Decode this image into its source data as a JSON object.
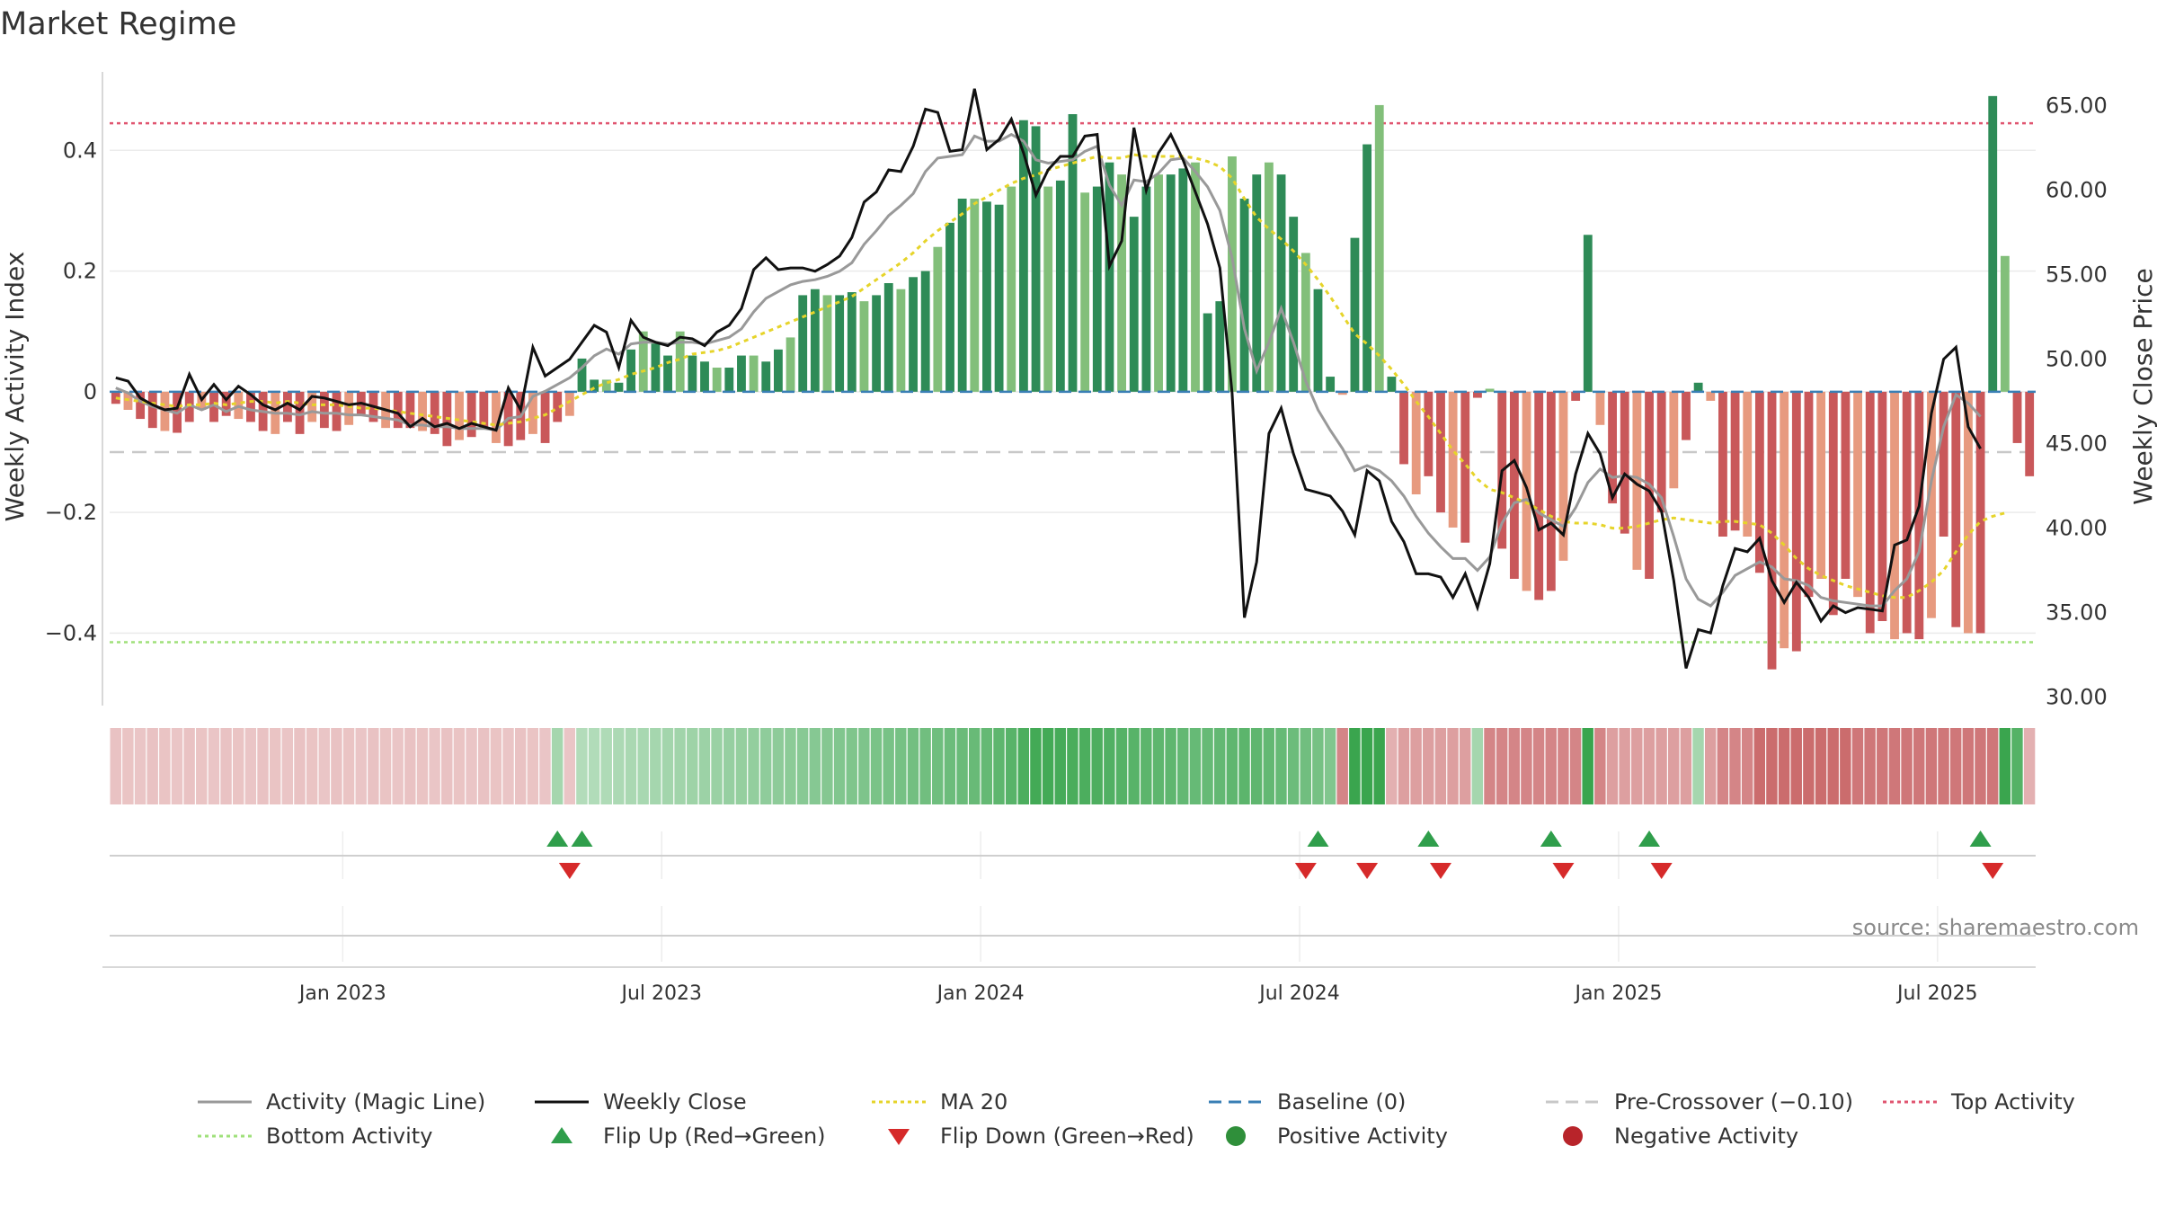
{
  "title": "Market Regime",
  "source": "source: sharemaestro.com",
  "chart_data": {
    "type": "bar",
    "title": "Market Regime",
    "ylabel_left": "Weekly Activity Index",
    "ylabel_right": "Weekly Close Price",
    "ylim_left": [
      -0.52,
      0.53
    ],
    "ylim_right": [
      29.5,
      67.0
    ],
    "yticks_left": [
      {
        "value": 0.4,
        "label": "0.4"
      },
      {
        "value": 0.2,
        "label": "0.2"
      },
      {
        "value": 0,
        "label": "0"
      },
      {
        "value": -0.2,
        "label": "−0.2"
      },
      {
        "value": -0.4,
        "label": "−0.4"
      }
    ],
    "yticks_right": [
      "65.00",
      "60.00",
      "55.00",
      "50.00",
      "45.00",
      "40.00",
      "35.00",
      "30.00"
    ],
    "xticks": [
      {
        "week": 19,
        "label": "Jan 2023"
      },
      {
        "week": 45,
        "label": "Jul 2023"
      },
      {
        "week": 71,
        "label": "Jan 2024"
      },
      {
        "week": 97,
        "label": "Jul 2024"
      },
      {
        "week": 123,
        "label": "Jan 2025"
      },
      {
        "week": 149,
        "label": "Jul 2025"
      }
    ],
    "reference_lines": {
      "top_activity": 0.445,
      "bottom_activity": -0.415,
      "baseline": 0,
      "pre_crossover": -0.1
    },
    "activity_weekly": [
      -0.02,
      -0.03,
      -0.045,
      -0.06,
      -0.065,
      -0.068,
      -0.05,
      -0.03,
      -0.05,
      -0.04,
      -0.045,
      -0.05,
      -0.065,
      -0.07,
      -0.05,
      -0.07,
      -0.05,
      -0.06,
      -0.065,
      -0.055,
      -0.04,
      -0.05,
      -0.06,
      -0.06,
      -0.06,
      -0.065,
      -0.07,
      -0.09,
      -0.08,
      -0.075,
      -0.06,
      -0.085,
      -0.09,
      -0.08,
      -0.07,
      -0.085,
      -0.05,
      -0.04,
      0.055,
      0.02,
      0.02,
      0.015,
      0.07,
      0.1,
      0.08,
      0.06,
      0.1,
      0.06,
      0.05,
      0.04,
      0.04,
      0.06,
      0.06,
      0.05,
      0.07,
      0.09,
      0.16,
      0.17,
      0.16,
      0.16,
      0.165,
      0.15,
      0.16,
      0.18,
      0.17,
      0.19,
      0.2,
      0.24,
      0.28,
      0.32,
      0.32,
      0.315,
      0.31,
      0.34,
      0.45,
      0.44,
      0.34,
      0.35,
      0.46,
      0.33,
      0.34,
      0.38,
      0.36,
      0.29,
      0.34,
      0.36,
      0.36,
      0.37,
      0.38,
      0.13,
      0.15,
      0.39,
      0.32,
      0.36,
      0.38,
      0.36,
      0.29,
      0.23,
      0.17,
      0.025,
      -0.005,
      0.255,
      0.41,
      0.475,
      0.025,
      -0.12,
      -0.17,
      -0.14,
      -0.2,
      -0.225,
      -0.25,
      -0.01,
      0.005,
      -0.26,
      -0.31,
      -0.33,
      -0.345,
      -0.33,
      -0.28,
      -0.015,
      0.26,
      -0.055,
      -0.185,
      -0.235,
      -0.295,
      -0.31,
      -0.2,
      -0.16,
      -0.08,
      0.015,
      -0.015,
      -0.24,
      -0.23,
      -0.24,
      -0.3,
      -0.46,
      -0.425,
      -0.43,
      -0.34,
      -0.31,
      -0.37,
      -0.31,
      -0.34,
      -0.4,
      -0.38,
      -0.41,
      -0.4,
      -0.41,
      -0.375,
      -0.24,
      -0.39,
      -0.4,
      -0.4,
      0.49,
      0.225,
      -0.085,
      -0.14
    ],
    "close_weekly": [
      48.9,
      48.7,
      47.7,
      47.3,
      47.0,
      47.1,
      49.1,
      47.6,
      48.5,
      47.6,
      48.4,
      47.9,
      47.3,
      47.0,
      47.4,
      47.0,
      47.8,
      47.7,
      47.5,
      47.3,
      47.4,
      47.2,
      47.0,
      46.8,
      46.0,
      46.5,
      46.0,
      46.2,
      45.9,
      46.2,
      46.0,
      45.8,
      48.3,
      47.0,
      50.7,
      49.0,
      49.5,
      50.0,
      51.0,
      52.0,
      51.6,
      49.5,
      52.3,
      51.3,
      51.0,
      50.8,
      51.3,
      51.2,
      50.8,
      51.6,
      52.0,
      53.0,
      55.3,
      56.0,
      55.3,
      55.4,
      55.4,
      55.2,
      55.6,
      56.1,
      57.2,
      59.3,
      59.9,
      61.2,
      61.1,
      62.6,
      64.8,
      64.6,
      62.3,
      62.4,
      66.0,
      62.4,
      63.0,
      64.2,
      62.2,
      59.7,
      61.2,
      62.0,
      62.0,
      63.2,
      63.3,
      55.5,
      57.0,
      63.7,
      60.0,
      62.2,
      63.3,
      61.8,
      59.9,
      58.0,
      55.4,
      48.0,
      34.7,
      38.0,
      45.6,
      47.1,
      44.4,
      42.3,
      42.1,
      41.9,
      41.0,
      39.6,
      43.4,
      42.8,
      40.4,
      39.2,
      37.3,
      37.3,
      37.1,
      35.9,
      37.3,
      35.3,
      37.9,
      43.4,
      44.0,
      42.4,
      39.9,
      40.3,
      39.6,
      43.2,
      45.6,
      44.4,
      41.8,
      43.2,
      42.6,
      42.2,
      41.0,
      36.9,
      31.7,
      34.0,
      33.8,
      36.6,
      38.8,
      38.6,
      39.4,
      36.9,
      35.6,
      36.8,
      35.9,
      34.5,
      35.4,
      35.0,
      35.3,
      35.2,
      35.1,
      39.0,
      39.3,
      41.3,
      46.8,
      50.0,
      50.7,
      46.0,
      44.7
    ],
    "magic_line_weekly": [
      48.3,
      48.0,
      47.5,
      47.2,
      47.0,
      46.8,
      47.3,
      47.0,
      47.3,
      46.9,
      47.2,
      47.0,
      46.9,
      46.8,
      46.8,
      46.7,
      46.9,
      46.8,
      46.8,
      46.7,
      46.7,
      46.6,
      46.5,
      46.4,
      46.1,
      46.1,
      46.0,
      46.0,
      45.9,
      45.9,
      45.9,
      45.8,
      46.5,
      46.6,
      47.8,
      48.1,
      48.5,
      48.9,
      49.5,
      50.2,
      50.6,
      50.3,
      50.9,
      51.0,
      51.0,
      50.9,
      51.0,
      51.0,
      50.9,
      51.1,
      51.3,
      51.8,
      52.8,
      53.6,
      54.0,
      54.4,
      54.6,
      54.7,
      54.9,
      55.2,
      55.7,
      56.8,
      57.6,
      58.5,
      59.1,
      59.8,
      61.1,
      61.9,
      62.0,
      62.1,
      63.2,
      62.9,
      62.9,
      63.3,
      62.9,
      61.8,
      61.6,
      61.7,
      61.8,
      62.3,
      62.6,
      60.3,
      59.1,
      60.6,
      60.5,
      61.0,
      61.8,
      61.9,
      61.1,
      60.2,
      58.8,
      56.0,
      51.8,
      49.3,
      51.0,
      53.0,
      51.0,
      48.7,
      47.0,
      45.8,
      44.7,
      43.4,
      43.7,
      43.4,
      42.8,
      41.9,
      40.7,
      39.7,
      38.9,
      38.2,
      38.2,
      37.5,
      38.3,
      40.3,
      41.5,
      41.7,
      40.9,
      40.5,
      40.1,
      41.2,
      42.7,
      43.5,
      43.0,
      43.1,
      43.0,
      42.6,
      41.8,
      39.5,
      37.0,
      35.8,
      35.4,
      36.2,
      37.2,
      37.6,
      38.0,
      37.7,
      37.0,
      36.9,
      36.6,
      35.9,
      35.7,
      35.6,
      35.5,
      35.4,
      35.4,
      36.3,
      37.0,
      38.6,
      42.8,
      46.0,
      47.9,
      47.4,
      46.6
    ],
    "ma20_weekly": [
      47.7,
      47.6,
      47.5,
      47.4,
      47.3,
      47.2,
      47.3,
      47.3,
      47.4,
      47.3,
      47.4,
      47.5,
      47.5,
      47.4,
      47.5,
      47.4,
      47.3,
      47.3,
      47.3,
      47.2,
      47.1,
      47.1,
      47.0,
      46.9,
      46.8,
      46.7,
      46.6,
      46.5,
      46.4,
      46.3,
      46.2,
      46.1,
      46.2,
      46.3,
      46.5,
      46.7,
      47.1,
      47.5,
      47.9,
      48.3,
      48.6,
      48.8,
      49.1,
      49.3,
      49.5,
      49.8,
      50.0,
      50.3,
      50.4,
      50.5,
      50.7,
      51.0,
      51.3,
      51.6,
      51.9,
      52.2,
      52.5,
      52.8,
      53.1,
      53.4,
      53.7,
      54.2,
      54.7,
      55.2,
      55.7,
      56.3,
      57.0,
      57.6,
      58.1,
      58.6,
      59.2,
      59.6,
      60.0,
      60.4,
      60.7,
      60.9,
      61.2,
      61.4,
      61.6,
      61.8,
      62.0,
      61.9,
      61.9,
      62.1,
      62.0,
      62.0,
      62.0,
      62.0,
      61.9,
      61.7,
      61.4,
      60.7,
      59.5,
      58.4,
      57.7,
      57.1,
      56.4,
      55.6,
      54.7,
      53.7,
      52.6,
      51.5,
      50.9,
      50.2,
      49.4,
      48.5,
      47.5,
      46.6,
      45.6,
      44.6,
      43.8,
      42.9,
      42.3,
      42.1,
      41.8,
      41.5,
      41.1,
      40.7,
      40.4,
      40.3,
      40.3,
      40.2,
      40.0,
      40.0,
      40.1,
      40.3,
      40.5,
      40.6,
      40.5,
      40.4,
      40.3,
      40.4,
      40.4,
      40.3,
      40.2,
      39.7,
      39.0,
      38.2,
      37.6,
      37.2,
      36.9,
      36.6,
      36.4,
      36.2,
      36.0,
      35.9,
      35.9,
      36.3,
      36.8,
      37.5,
      38.6,
      39.6,
      40.4,
      40.7,
      40.9
    ],
    "regime_strip": [
      -0.17,
      -0.16,
      -0.15,
      -0.17,
      -0.16,
      -0.15,
      -0.17,
      -0.16,
      -0.15,
      -0.17,
      -0.16,
      -0.15,
      -0.17,
      -0.16,
      -0.15,
      -0.17,
      -0.16,
      -0.15,
      -0.17,
      -0.16,
      -0.15,
      -0.17,
      -0.16,
      -0.15,
      -0.17,
      -0.16,
      -0.15,
      -0.17,
      -0.16,
      -0.15,
      -0.17,
      -0.16,
      -0.15,
      -0.17,
      -0.16,
      -0.15,
      0.25,
      -0.15,
      0.17,
      0.18,
      0.19,
      0.21,
      0.22,
      0.23,
      0.25,
      0.26,
      0.27,
      0.29,
      0.3,
      0.31,
      0.33,
      0.34,
      0.35,
      0.37,
      0.38,
      0.39,
      0.41,
      0.42,
      0.43,
      0.45,
      0.46,
      0.47,
      0.49,
      0.5,
      0.51,
      0.53,
      0.54,
      0.55,
      0.57,
      0.58,
      0.59,
      0.61,
      0.65,
      0.68,
      0.75,
      0.8,
      0.8,
      0.78,
      0.76,
      0.75,
      0.74,
      0.72,
      0.7,
      0.68,
      0.66,
      0.65,
      0.64,
      0.62,
      0.6,
      0.6,
      0.62,
      0.64,
      0.66,
      0.64,
      0.62,
      0.6,
      0.57,
      0.54,
      0.51,
      0.45,
      -0.6,
      0.85,
      0.85,
      0.85,
      -0.3,
      -0.42,
      -0.42,
      -0.42,
      -0.42,
      -0.42,
      -0.42,
      0.25,
      -0.6,
      -0.6,
      -0.6,
      -0.6,
      -0.6,
      -0.6,
      -0.6,
      -0.6,
      0.85,
      -0.6,
      -0.42,
      -0.42,
      -0.42,
      -0.42,
      -0.42,
      -0.42,
      -0.42,
      0.25,
      -0.42,
      -0.6,
      -0.6,
      -0.6,
      -0.78,
      -0.78,
      -0.78,
      -0.78,
      -0.78,
      -0.78,
      -0.78,
      -0.78,
      -0.7,
      -0.7,
      -0.7,
      -0.7,
      -0.7,
      -0.7,
      -0.7,
      -0.7,
      -0.7,
      -0.7,
      -0.7,
      -0.7,
      0.85,
      0.7,
      -0.3
    ],
    "flip_up_weeks": [
      36,
      38,
      98,
      107,
      117,
      125,
      152
    ],
    "flip_down_weeks": [
      37,
      97,
      102,
      108,
      118,
      126,
      153
    ],
    "legend": [
      {
        "label": "Activity (Magic Line)",
        "kind": "line",
        "color": "#999999",
        "dash": "none"
      },
      {
        "label": "Weekly Close",
        "kind": "line",
        "color": "#111111",
        "dash": "none"
      },
      {
        "label": "MA 20",
        "kind": "line",
        "color": "#e6d42a",
        "dash": "4 4"
      },
      {
        "label": "Baseline (0)",
        "kind": "line",
        "color": "#3a7fb5",
        "dash": "14 8"
      },
      {
        "label": "Pre-Crossover (−0.10)",
        "kind": "line",
        "color": "#c8c8c8",
        "dash": "14 8"
      },
      {
        "label": "Top Activity",
        "kind": "line",
        "color": "#e05570",
        "dash": "4 4"
      },
      {
        "label": "Bottom Activity",
        "kind": "line",
        "color": "#9fe07a",
        "dash": "4 4"
      },
      {
        "label": "Flip Up (Red→Green)",
        "kind": "tri-up",
        "color": "#2f9e4b"
      },
      {
        "label": "Flip Down (Green→Red)",
        "kind": "tri-down",
        "color": "#d62a2a"
      },
      {
        "label": "Positive Activity",
        "kind": "dot",
        "color": "#2f8f3a"
      },
      {
        "label": "Negative Activity",
        "kind": "dot",
        "color": "#b8242a"
      }
    ]
  }
}
